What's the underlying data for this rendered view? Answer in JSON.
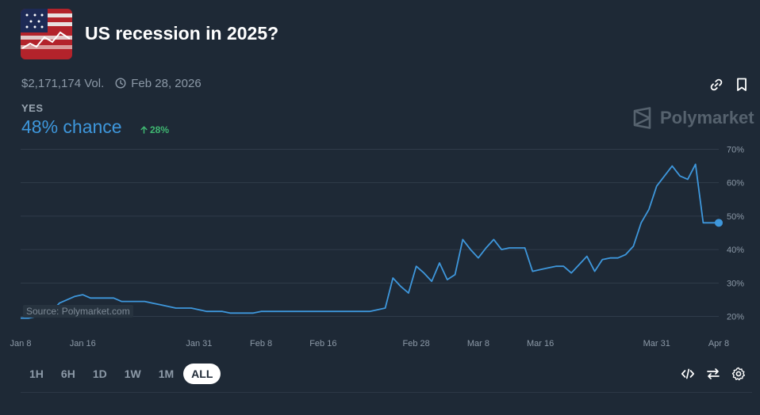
{
  "market": {
    "title": "US recession in 2025?",
    "volume": "$2,171,174 Vol.",
    "end_date": "Feb 28, 2026",
    "outcome_label": "YES",
    "chance": "48% chance",
    "change": "28%"
  },
  "brand": "Polymarket",
  "source_label": "Source: Polymarket.com",
  "time_ranges": [
    "1H",
    "6H",
    "1D",
    "1W",
    "1M",
    "ALL"
  ],
  "selected_range": "ALL",
  "icons": {
    "link": "link-icon",
    "bookmark": "bookmark-icon",
    "clock": "clock-icon",
    "arrow_up": "arrow-up-icon",
    "embed": "code-icon",
    "swap": "swap-icon",
    "settings": "gear-icon"
  },
  "colors": {
    "background": "#1e2936",
    "line": "#3e97dc",
    "up": "#3fb772",
    "muted": "#8c99a7"
  },
  "chart_data": {
    "type": "line",
    "y_ticks": [
      "20%",
      "30%",
      "40%",
      "50%",
      "60%",
      "70%"
    ],
    "ylim": [
      18,
      72
    ],
    "x_ticks": [
      {
        "date": "2025-01-08",
        "label": "Jan 8"
      },
      {
        "date": "2025-01-16",
        "label": "Jan 16"
      },
      {
        "date": "2025-01-31",
        "label": "Jan 31"
      },
      {
        "date": "2025-02-08",
        "label": "Feb 8"
      },
      {
        "date": "2025-02-16",
        "label": "Feb 16"
      },
      {
        "date": "2025-02-28",
        "label": "Feb 28"
      },
      {
        "date": "2025-03-08",
        "label": "Mar 8"
      },
      {
        "date": "2025-03-16",
        "label": "Mar 16"
      },
      {
        "date": "2025-03-31",
        "label": "Mar 31"
      },
      {
        "date": "2025-04-08",
        "label": "Apr 8"
      }
    ],
    "grid": true,
    "series": [
      {
        "x": [
          "2025-01-08",
          "2025-01-09",
          "2025-01-10",
          "2025-01-11",
          "2025-01-12",
          "2025-01-13",
          "2025-01-14",
          "2025-01-15",
          "2025-01-16",
          "2025-01-17",
          "2025-01-18",
          "2025-01-19",
          "2025-01-20",
          "2025-01-21",
          "2025-01-22",
          "2025-01-23",
          "2025-01-24",
          "2025-01-25",
          "2025-01-26",
          "2025-01-27",
          "2025-01-28",
          "2025-01-29",
          "2025-01-30",
          "2025-01-31",
          "2025-02-01",
          "2025-02-02",
          "2025-02-03",
          "2025-02-04",
          "2025-02-05",
          "2025-02-06",
          "2025-02-07",
          "2025-02-08",
          "2025-02-09",
          "2025-02-10",
          "2025-02-11",
          "2025-02-12",
          "2025-02-13",
          "2025-02-14",
          "2025-02-15",
          "2025-02-16",
          "2025-02-18",
          "2025-02-20",
          "2025-02-22",
          "2025-02-24",
          "2025-02-25",
          "2025-02-26",
          "2025-02-27",
          "2025-02-28",
          "2025-03-01",
          "2025-03-02",
          "2025-03-03",
          "2025-03-04",
          "2025-03-05",
          "2025-03-06",
          "2025-03-07",
          "2025-03-08",
          "2025-03-09",
          "2025-03-10",
          "2025-03-11",
          "2025-03-12",
          "2025-03-13",
          "2025-03-14",
          "2025-03-15",
          "2025-03-16",
          "2025-03-17",
          "2025-03-18",
          "2025-03-19",
          "2025-03-20",
          "2025-03-21",
          "2025-03-22",
          "2025-03-23",
          "2025-03-24",
          "2025-03-25",
          "2025-03-26",
          "2025-03-27",
          "2025-03-28",
          "2025-03-29",
          "2025-03-30",
          "2025-03-31",
          "2025-04-01",
          "2025-04-02",
          "2025-04-03",
          "2025-04-04",
          "2025-04-05",
          "2025-04-06",
          "2025-04-07",
          "2025-04-08"
        ],
        "values": [
          19.5,
          19.5,
          20,
          20.5,
          21.5,
          24,
          25,
          26,
          26.5,
          25.5,
          25.5,
          25.5,
          25.5,
          24.5,
          24.5,
          24.5,
          24.5,
          24,
          23.5,
          23,
          22.5,
          22.5,
          22.5,
          22,
          21.5,
          21.5,
          21.5,
          21,
          21,
          21,
          21,
          21.5,
          21.5,
          21.5,
          21.5,
          21.5,
          21.5,
          21.5,
          21.5,
          21.5,
          21.5,
          21.5,
          21.5,
          22.5,
          31.5,
          29,
          27,
          35,
          33,
          30.5,
          36,
          31,
          32.5,
          43,
          40,
          37.5,
          40.5,
          43,
          40,
          40.5,
          40.5,
          40.5,
          33.5,
          34,
          34.5,
          35,
          35,
          33,
          35.5,
          38,
          33.5,
          37,
          37.5,
          37.5,
          38.5,
          41,
          48,
          52,
          59,
          62,
          65,
          62,
          61,
          65.5,
          48,
          48,
          48
        ]
      }
    ]
  }
}
